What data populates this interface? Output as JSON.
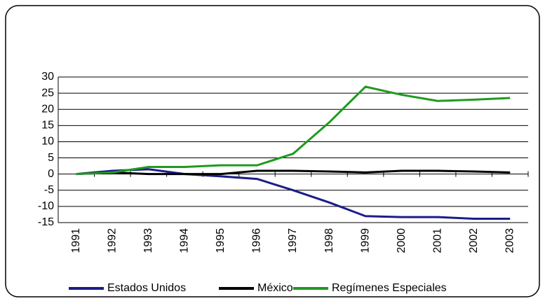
{
  "chart_data": {
    "type": "line",
    "categories": [
      "1991",
      "1992",
      "1993",
      "1994",
      "1995",
      "1996",
      "1997",
      "1998",
      "1999",
      "2000",
      "2001",
      "2002",
      "2003"
    ],
    "series": [
      {
        "name": "Estados Unidos",
        "color": "#1c1c8a",
        "values": [
          0,
          1,
          1.5,
          0,
          -0.7,
          -1.5,
          -5,
          -8.8,
          -13,
          -13.3,
          -13.3,
          -13.8,
          -13.8
        ]
      },
      {
        "name": "México",
        "color": "#000000",
        "values": [
          0,
          0.5,
          0,
          0,
          0,
          1,
          1,
          0.8,
          0.5,
          1,
          1,
          0.8,
          0.5
        ]
      },
      {
        "name": "Regímenes Especiales",
        "color": "#1f9a1f",
        "values": [
          0,
          0.5,
          2.2,
          2.2,
          2.7,
          2.7,
          6.3,
          16,
          27,
          24.5,
          22.6,
          23,
          23.5
        ]
      }
    ],
    "ylim": [
      -15,
      30
    ],
    "yticks": [
      30,
      25,
      20,
      15,
      10,
      5,
      0,
      -5,
      -10,
      -15
    ],
    "grid": true
  }
}
